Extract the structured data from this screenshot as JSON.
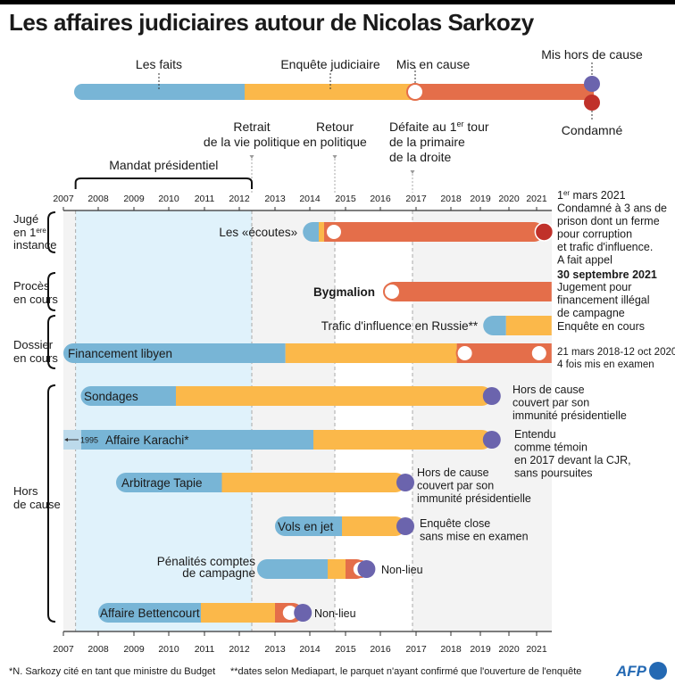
{
  "title": "Les affaires judiciaires autour de Nicolas Sarkozy",
  "legend": {
    "facts": "Les faits",
    "investigation": "Enquête judiciaire",
    "implicated": "Mis en cause",
    "cleared": "Mis hors de cause",
    "convicted": "Condamné"
  },
  "colors": {
    "facts": "#78b5d6",
    "investigation": "#fbb84a",
    "implicated": "#e46e4a",
    "cleared": "#6b64ad",
    "convicted": "#c0312a",
    "presidency_band": "#e0f2fb",
    "grey_band": "#f3f3f3"
  },
  "events": [
    {
      "label_lines": [
        "Retrait",
        "de la vie politique"
      ],
      "year": 2012.35
    },
    {
      "label_lines": [
        "Retour",
        "en politique"
      ],
      "year": 2014.7
    },
    {
      "label_lines": [
        "Défaite au 1er tour",
        "de la primaire",
        "de la droite"
      ],
      "year": 2016.9
    }
  ],
  "presidency": {
    "label": "Mandat présidentiel",
    "start": 2007.35,
    "end": 2012.35
  },
  "groups": [
    {
      "label_lines": [
        "Jugé",
        "en 1ère",
        "instance"
      ]
    },
    {
      "label_lines": [
        "Procès",
        "en cours"
      ]
    },
    {
      "label_lines": [
        "Dossier",
        "en cours"
      ]
    },
    {
      "label_lines": [
        "Hors",
        "de cause"
      ]
    }
  ],
  "chart_data": {
    "type": "timeline",
    "title": "Les affaires judiciaires autour de Nicolas Sarkozy",
    "x_ticks": [
      2007,
      2008,
      2009,
      2010,
      2011,
      2012,
      2013,
      2014,
      2015,
      2016,
      2017,
      2018,
      2019,
      2020,
      2021
    ],
    "x_range": [
      2007,
      2021.4
    ],
    "affairs": [
      {
        "name": "Les «écoutes»",
        "group": "Jugé en 1ère instance",
        "facts": [
          2013.8,
          2014.25
        ],
        "investigation": [
          2014.25,
          2014.4
        ],
        "implicated": [
          2014.4,
          2021.2
        ],
        "implicated_marker": 2014.45,
        "outcome": "convicted",
        "outcome_year": 2021.2,
        "note": [
          "1er mars 2021",
          "Condamné à 3 ans de",
          "prison dont un ferme",
          "pour corruption",
          "et trafic d'influence.",
          "A fait appel"
        ]
      },
      {
        "name": "Bygmalion",
        "group": "Procès en cours",
        "implicated": [
          2016.1,
          2021.4
        ],
        "implicated_marker": 2016.1,
        "note_bold": "30 septembre 2021",
        "note": [
          "Jugement pour",
          "financement illégal",
          "de campagne"
        ]
      },
      {
        "name": "Trafic d'influence en Russie**",
        "group": "Dossier en cours",
        "facts": [
          2019.1,
          2019.9
        ],
        "investigation": [
          2019.9,
          2021.4
        ],
        "note": [
          "Enquête en cours"
        ]
      },
      {
        "name": "Financement libyen",
        "group": "Dossier en cours",
        "facts": [
          2007,
          2013.3
        ],
        "investigation": [
          2013.3,
          2018.2
        ],
        "implicated": [
          2018.2,
          2021.4
        ],
        "implicated_markers": [
          2018.2,
          2020.8
        ],
        "note": [
          "21 mars 2018-12 oct 2020",
          "4 fois mis en examen"
        ]
      },
      {
        "name": "Sondages",
        "group": "Hors de cause",
        "facts": [
          2007.5,
          2010.2
        ],
        "investigation": [
          2010.2,
          2019.4
        ],
        "outcome": "cleared",
        "outcome_year": 2019.4,
        "note": [
          "Hors de cause",
          "couvert par son",
          "immunité présidentielle"
        ]
      },
      {
        "name": "Affaire Karachi*",
        "group": "Hors de cause",
        "facts_start_label": "1995",
        "facts": [
          1995,
          2014.1
        ],
        "investigation": [
          2014.1,
          2019.4
        ],
        "outcome": "cleared",
        "outcome_year": 2019.4,
        "note": [
          "Entendu",
          "comme témoin",
          "en 2017 devant la CJR,",
          "sans poursuites"
        ]
      },
      {
        "name": "Arbitrage Tapie",
        "group": "Hors de cause",
        "facts": [
          2008.5,
          2011.5
        ],
        "investigation": [
          2011.5,
          2016.7
        ],
        "outcome": "cleared",
        "outcome_year": 2016.7,
        "note": [
          "Hors de cause",
          "couvert par son",
          "immunité présidentielle"
        ]
      },
      {
        "name": "Vols en jet",
        "group": "Hors de cause",
        "facts": [
          2013.0,
          2014.9
        ],
        "investigation": [
          2014.9,
          2016.7
        ],
        "outcome": "cleared",
        "outcome_year": 2016.7,
        "note": [
          "Enquête close",
          "sans mise en examen"
        ]
      },
      {
        "name": "Pénalités comptes de campagne",
        "name_lines": [
          "Pénalités comptes",
          "de campagne"
        ],
        "group": "Hors de cause",
        "facts": [
          2012.5,
          2014.5
        ],
        "investigation": [
          2014.5,
          2015.0
        ],
        "implicated": [
          2015.0,
          2015.6
        ],
        "implicated_marker": 2015.2,
        "outcome": "cleared",
        "outcome_year": 2015.6,
        "note": [
          "Non-lieu"
        ]
      },
      {
        "name": "Affaire Bettencourt",
        "group": "Hors de cause",
        "facts": [
          2008.0,
          2010.9
        ],
        "investigation": [
          2010.9,
          2013.0
        ],
        "implicated": [
          2013.0,
          2013.8
        ],
        "implicated_marker": 2013.2,
        "outcome": "cleared",
        "outcome_year": 2013.8,
        "note": [
          "Non-lieu"
        ]
      }
    ]
  },
  "footnotes": {
    "one": "*N. Sarkozy cité en tant que ministre du Budget",
    "two": "**dates selon Mediapart, le parquet n'ayant confirmé que l'ouverture de l'enquête"
  },
  "logo": "AFP"
}
